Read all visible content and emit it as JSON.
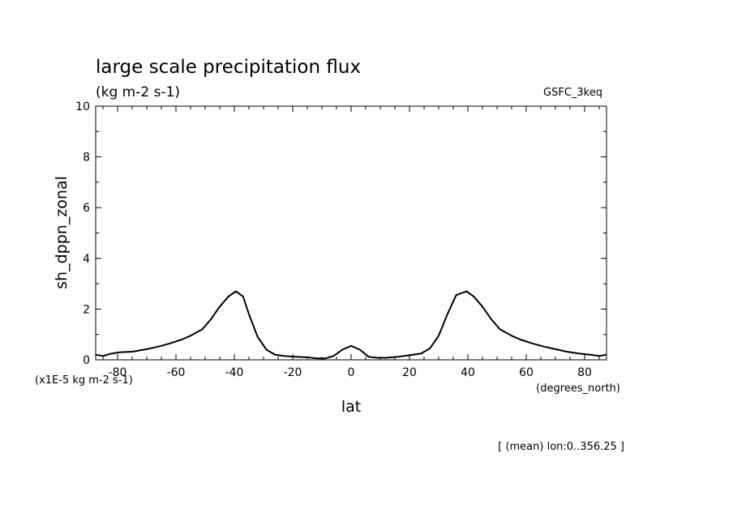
{
  "chart_data": {
    "type": "line",
    "title": "large scale precipitation flux",
    "subtitle": "(kg m-2 s-1)",
    "model_label": "GSFC_3keq",
    "xlabel": "lat",
    "xunits": "(degrees_north)",
    "ylabel": "sh_dppn_zonal",
    "yscale_note": "(x1E-5 kg m-2 s-1)",
    "footer": "[ (mean) lon:0..356.25 ]",
    "xlim": [
      -87.5,
      87.5
    ],
    "ylim": [
      0,
      10
    ],
    "xticks": [
      -80,
      -60,
      -40,
      -20,
      0,
      20,
      40,
      60,
      80
    ],
    "xtick_labels": [
      "-80",
      "-60",
      "-40",
      "-20",
      "0",
      "20",
      "40",
      "60",
      "80"
    ],
    "yticks": [
      0,
      2,
      4,
      6,
      8,
      10
    ],
    "ytick_labels": [
      "0",
      "2",
      "4",
      "6",
      "8",
      "10"
    ],
    "grid": false,
    "series": [
      {
        "x": [
          -87.5,
          -85,
          -82,
          -79,
          -75,
          -70,
          -66,
          -62,
          -58,
          -55,
          -51,
          -48,
          -45,
          -42,
          -39.5,
          -37,
          -35,
          -32,
          -29,
          -26,
          -23,
          -19,
          -15,
          -12,
          -9,
          -6,
          -3,
          0,
          3,
          6,
          9,
          12,
          16,
          20,
          24,
          27,
          30,
          33,
          36,
          39.5,
          42,
          45,
          48,
          51,
          55,
          58,
          62,
          66,
          70,
          74,
          78,
          82,
          85,
          87.5
        ],
        "y": [
          0.2,
          0.15,
          0.25,
          0.3,
          0.32,
          0.42,
          0.52,
          0.65,
          0.8,
          0.95,
          1.2,
          1.6,
          2.1,
          2.5,
          2.7,
          2.5,
          1.8,
          0.9,
          0.4,
          0.2,
          0.15,
          0.12,
          0.1,
          0.06,
          0.05,
          0.15,
          0.4,
          0.55,
          0.4,
          0.12,
          0.08,
          0.08,
          0.12,
          0.18,
          0.25,
          0.45,
          0.95,
          1.8,
          2.55,
          2.7,
          2.5,
          2.1,
          1.6,
          1.2,
          0.95,
          0.8,
          0.65,
          0.52,
          0.42,
          0.32,
          0.25,
          0.2,
          0.15,
          0.2
        ]
      }
    ]
  }
}
